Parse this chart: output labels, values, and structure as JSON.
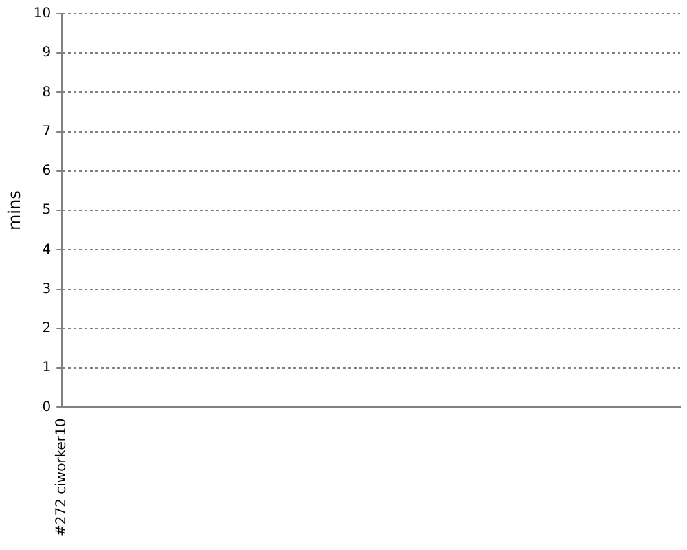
{
  "chart_data": {
    "type": "area",
    "categories": [
      "#272 ciworker10"
    ],
    "values": [
      null
    ],
    "ylabel": "mins",
    "ylim": [
      0,
      10
    ],
    "yticks": [
      0,
      1,
      2,
      3,
      4,
      5,
      6,
      7,
      8,
      9,
      10
    ],
    "grid": "y"
  }
}
